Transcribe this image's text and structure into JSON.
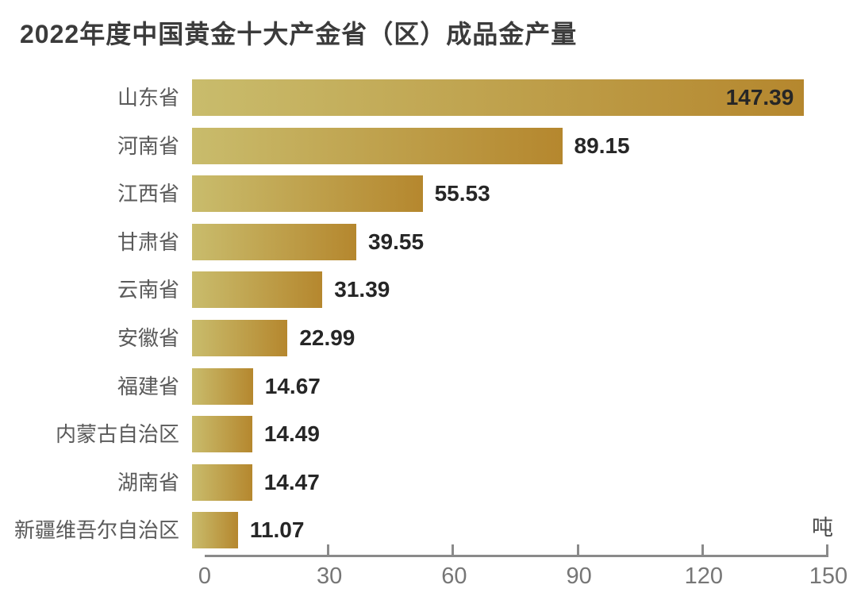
{
  "title": "2022年度中国黄金十大产金省（区）成品金产量",
  "chart_data": {
    "type": "bar",
    "orientation": "horizontal",
    "title": "2022年度中国黄金十大产金省（区）成品金产量",
    "categories": [
      "山东省",
      "河南省",
      "江西省",
      "甘肃省",
      "云南省",
      "安徽省",
      "福建省",
      "内蒙古自治区",
      "湖南省",
      "新疆维吾尔自治区"
    ],
    "values": [
      147.39,
      89.15,
      55.53,
      39.55,
      31.39,
      22.99,
      14.67,
      14.49,
      14.47,
      11.07
    ],
    "value_label_inside": [
      true,
      false,
      false,
      false,
      false,
      false,
      false,
      false,
      false,
      false
    ],
    "unit": "吨",
    "xlabel": "",
    "ylabel": "",
    "xlim": [
      0,
      150
    ],
    "x_ticks": [
      0,
      30,
      60,
      90,
      120,
      150
    ],
    "grid": false,
    "legend": false,
    "colors": {
      "title": "#3b3b3b",
      "category_label": "#5a5a5a",
      "value_label": "#262626",
      "bar_gradient_start": "#c9bc6c",
      "bar_gradient_end": "#b5872e",
      "axis_line": "#8a8a8a",
      "tick_label": "#767676",
      "unit_label": "#4c4c4c"
    }
  }
}
